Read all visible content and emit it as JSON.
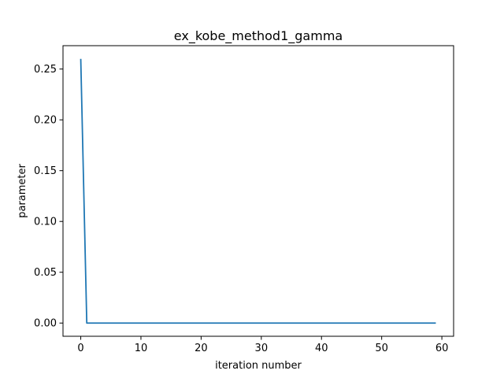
{
  "chart_data": {
    "type": "line",
    "title": "ex_kobe_method1_gamma",
    "xlabel": "iteration number",
    "ylabel": "parameter",
    "xlim": [
      -2.95,
      61.95
    ],
    "ylim": [
      -0.013,
      0.273
    ],
    "x_ticks": [
      0,
      10,
      20,
      30,
      40,
      50,
      60
    ],
    "y_ticks": [
      0.0,
      0.05,
      0.1,
      0.15,
      0.2,
      0.25
    ],
    "x_tick_labels": [
      "0",
      "10",
      "20",
      "30",
      "40",
      "50",
      "60"
    ],
    "y_tick_labels": [
      "0.00",
      "0.05",
      "0.10",
      "0.15",
      "0.20",
      "0.25"
    ],
    "grid": false,
    "series": [
      {
        "color": "#1f77b4",
        "x": [
          0,
          1,
          2,
          3,
          4,
          5,
          6,
          7,
          8,
          9,
          10,
          11,
          12,
          13,
          14,
          15,
          16,
          17,
          18,
          19,
          20,
          21,
          22,
          23,
          24,
          25,
          26,
          27,
          28,
          29,
          30,
          31,
          32,
          33,
          34,
          35,
          36,
          37,
          38,
          39,
          40,
          41,
          42,
          43,
          44,
          45,
          46,
          47,
          48,
          49,
          50,
          51,
          52,
          53,
          54,
          55,
          56,
          57,
          58,
          59
        ],
        "y": [
          0.26,
          0,
          0,
          0,
          0,
          0,
          0,
          0,
          0,
          0,
          0,
          0,
          0,
          0,
          0,
          0,
          0,
          0,
          0,
          0,
          0,
          0,
          0,
          0,
          0,
          0,
          0,
          0,
          0,
          0,
          0,
          0,
          0,
          0,
          0,
          0,
          0,
          0,
          0,
          0,
          0,
          0,
          0,
          0,
          0,
          0,
          0,
          0,
          0,
          0,
          0,
          0,
          0,
          0,
          0,
          0,
          0,
          0,
          0,
          0
        ]
      }
    ]
  }
}
